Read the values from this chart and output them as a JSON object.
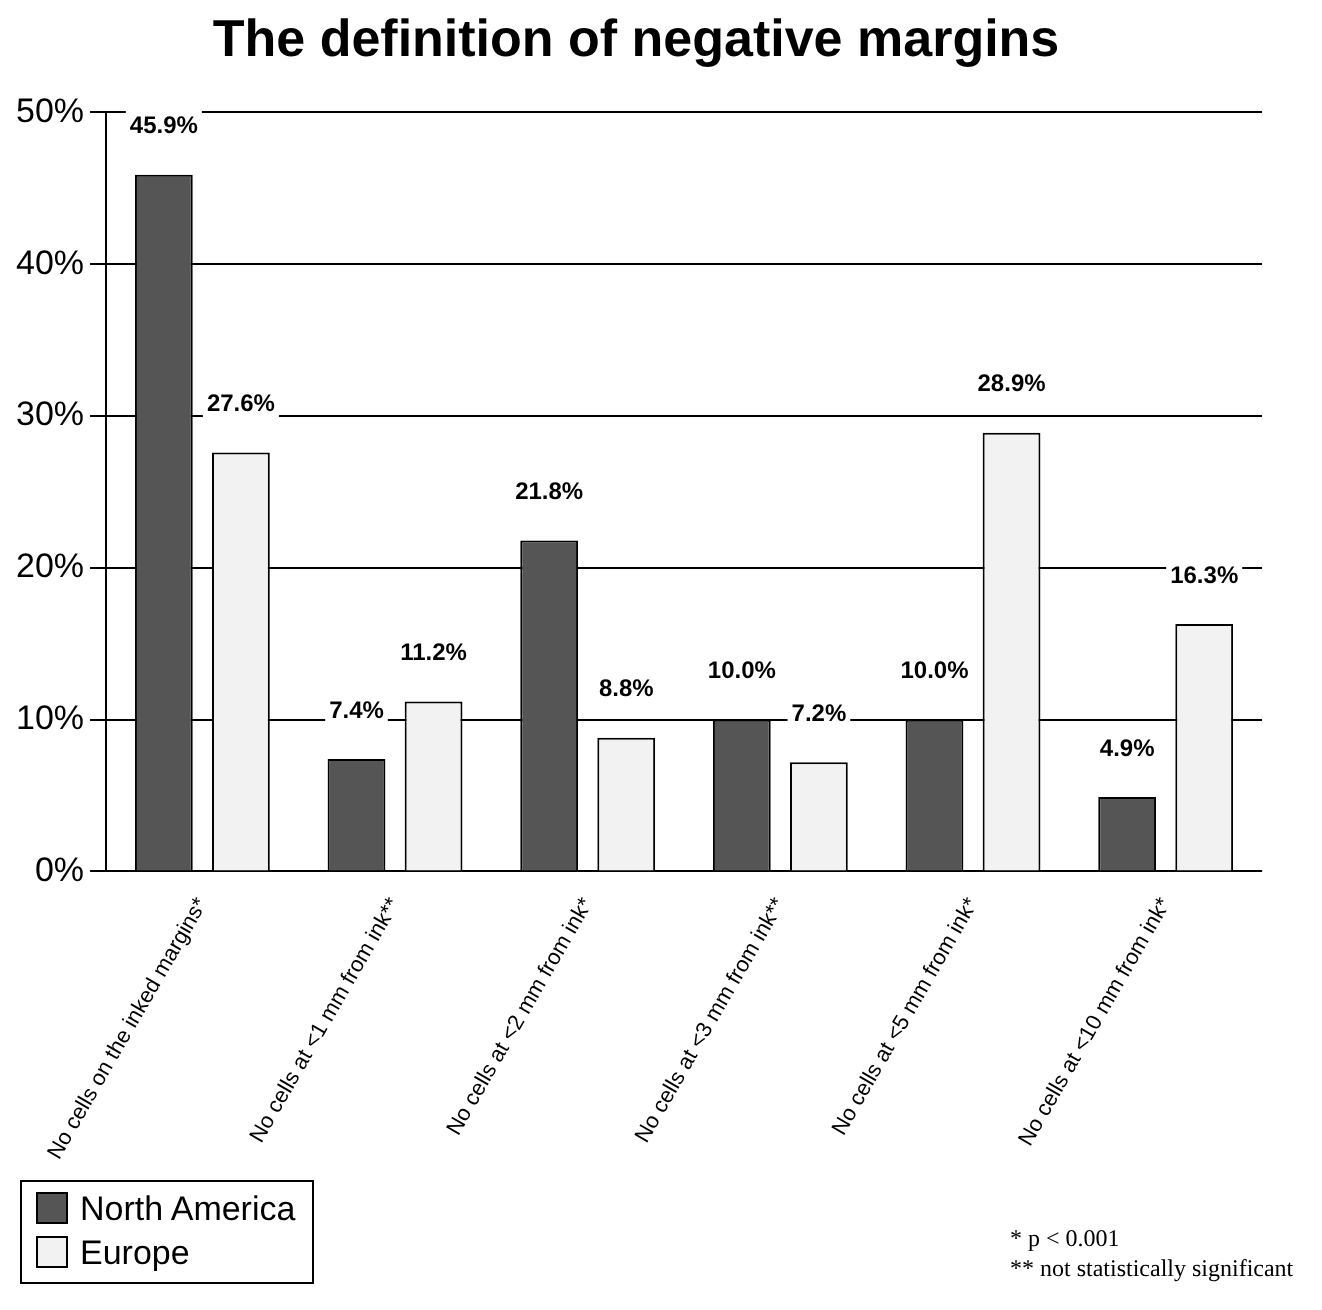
{
  "chart_data": {
    "type": "bar",
    "title": "The definition of negative margins",
    "categories": [
      "No cells on the inked margins*",
      "No cells at <1 mm from ink**",
      "No cells at <2 mm from ink*",
      "No cells at <3 mm from ink**",
      "No cells at <5 mm from ink*",
      "No cells at <10 mm from ink*"
    ],
    "series": [
      {
        "name": "North America",
        "color": "#555555",
        "values": [
          45.9,
          7.4,
          21.8,
          10.0,
          10.0,
          4.9
        ],
        "value_labels": [
          "45.9%",
          "7.4%",
          "21.8%",
          "10.0%",
          "10.0%",
          "4.9%"
        ]
      },
      {
        "name": "Europe",
        "color": "#f2f2f2",
        "values": [
          27.6,
          11.2,
          8.8,
          7.2,
          28.9,
          16.3
        ],
        "value_labels": [
          "27.6%",
          "11.2%",
          "8.8%",
          "7.2%",
          "28.9%",
          "16.3%"
        ]
      }
    ],
    "ylim": [
      0,
      50
    ],
    "yticks": [
      {
        "value": 0,
        "label": "0%"
      },
      {
        "value": 10,
        "label": "10%"
      },
      {
        "value": 20,
        "label": "20%"
      },
      {
        "value": 30,
        "label": "30%"
      },
      {
        "value": 40,
        "label": "40%"
      },
      {
        "value": 50,
        "label": "50%"
      }
    ],
    "grid": "y",
    "legend": "bottom left",
    "annotations": [
      "* p < 0.001",
      "** not statistically significant"
    ]
  }
}
